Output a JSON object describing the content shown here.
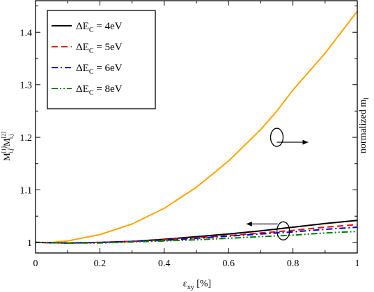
{
  "chart_data": {
    "type": "line",
    "xlabel_main": "ε",
    "xlabel_sub": "xy",
    "xlabel_unit": " [%]",
    "ylabel_left_main": "M",
    "ylabel_left_sup1": "[1]",
    "ylabel_left_sub1": "i,j",
    "ylabel_left_mid": "/M",
    "ylabel_left_sup2": "[2]",
    "ylabel_left_sub2": "i,j",
    "ylabel_right_main": "normalized m",
    "ylabel_right_sub": "l",
    "xlim": [
      0,
      1
    ],
    "ylim": [
      0.98,
      1.46
    ],
    "xticks": [
      "0",
      "0.2",
      "0.4",
      "0.6",
      "0.8",
      "1"
    ],
    "yticks": [
      "1",
      "1.1",
      "1.2",
      "1.3",
      "1.4"
    ],
    "legend_position": "top-left",
    "legend": [
      {
        "prefix": "ΔE",
        "sub": "C",
        "suffix": " = 4eV",
        "color": "#000000",
        "dash": "solid"
      },
      {
        "prefix": "ΔE",
        "sub": "C",
        "suffix": " = 5eV",
        "color": "#ff0000",
        "dash": "dashed"
      },
      {
        "prefix": "ΔE",
        "sub": "C",
        "suffix": " = 6eV",
        "color": "#0000cc",
        "dash": "dash-dot"
      },
      {
        "prefix": "ΔE",
        "sub": "C",
        "suffix": " = 8eV",
        "color": "#008000",
        "dash": "dash-dot-dot"
      }
    ],
    "series": [
      {
        "color": "#ffa500",
        "dash": "solid",
        "axis": "right",
        "x": [
          0,
          0.05,
          0.1,
          0.2,
          0.3,
          0.4,
          0.5,
          0.6,
          0.7,
          0.75,
          0.8,
          0.9,
          1.0
        ],
        "y": [
          1.0,
          1.0,
          1.003,
          1.015,
          1.035,
          1.065,
          1.105,
          1.155,
          1.215,
          1.25,
          1.29,
          1.36,
          1.44
        ]
      },
      {
        "color": "#000000",
        "dash": "solid",
        "axis": "left",
        "x": [
          0,
          0.1,
          0.2,
          0.3,
          0.4,
          0.5,
          0.6,
          0.7,
          0.8,
          0.9,
          1.0
        ],
        "y": [
          1.0,
          0.999,
          1.0,
          1.002,
          1.006,
          1.011,
          1.016,
          1.022,
          1.029,
          1.036,
          1.042
        ]
      },
      {
        "color": "#ff0000",
        "dash": "dashed",
        "axis": "left",
        "x": [
          0,
          0.1,
          0.2,
          0.3,
          0.4,
          0.5,
          0.6,
          0.7,
          0.8,
          0.9,
          1.0
        ],
        "y": [
          1.0,
          0.999,
          1.0,
          1.002,
          1.005,
          1.009,
          1.013,
          1.018,
          1.023,
          1.029,
          1.034
        ]
      },
      {
        "color": "#0000cc",
        "dash": "dash-dot",
        "axis": "left",
        "x": [
          0,
          0.1,
          0.2,
          0.3,
          0.4,
          0.5,
          0.6,
          0.7,
          0.8,
          0.9,
          1.0
        ],
        "y": [
          1.0,
          0.999,
          1.0,
          1.002,
          1.004,
          1.008,
          1.012,
          1.016,
          1.02,
          1.025,
          1.029
        ]
      },
      {
        "color": "#008000",
        "dash": "dash-dot-dot",
        "axis": "left",
        "x": [
          0,
          0.1,
          0.2,
          0.3,
          0.4,
          0.5,
          0.6,
          0.7,
          0.8,
          0.9,
          1.0
        ],
        "y": [
          1.0,
          0.999,
          0.999,
          1.001,
          1.003,
          1.005,
          1.008,
          1.011,
          1.014,
          1.018,
          1.021
        ]
      }
    ],
    "annotations": [
      {
        "type": "ellipse-arrow",
        "target_series": 0,
        "at_x": 0.75,
        "at_y": 1.2,
        "direction": "right"
      },
      {
        "type": "ellipse-arrow",
        "target_series": 1,
        "at_x": 0.77,
        "at_y": 1.022,
        "direction": "left"
      }
    ]
  }
}
